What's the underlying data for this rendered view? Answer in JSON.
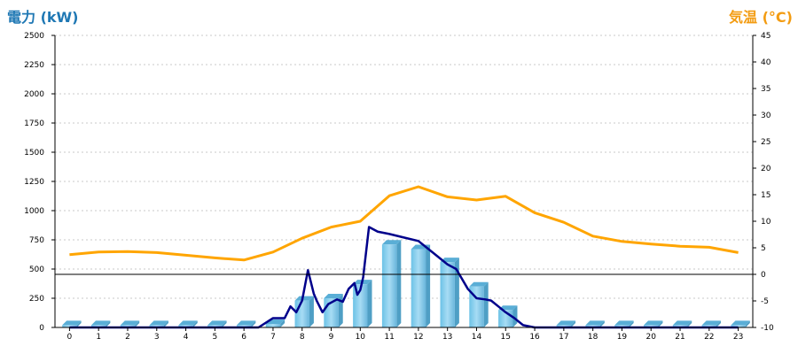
{
  "chart_data": {
    "type": "bar",
    "left_axis_title": "電力 (kW)",
    "right_axis_title": "気温 (°C)",
    "categories": [
      "0",
      "1",
      "2",
      "3",
      "4",
      "5",
      "6",
      "7",
      "8",
      "9",
      "10",
      "11",
      "12",
      "13",
      "14",
      "15",
      "16",
      "17",
      "18",
      "19",
      "20",
      "21",
      "22",
      "23"
    ],
    "left_ylim": [
      0,
      2500
    ],
    "left_yticks": [
      "0",
      "250",
      "500",
      "750",
      "1000",
      "1250",
      "1500",
      "1750",
      "2000",
      "2250",
      "2500"
    ],
    "right_ylim": [
      -10,
      45
    ],
    "right_yticks": [
      "-10",
      "-5",
      "0",
      "5",
      "10",
      "15",
      "20",
      "25",
      "30",
      "35",
      "40",
      "45"
    ],
    "grid": true,
    "colors": {
      "bars": "#87ceeb",
      "power_line": "#00008b",
      "temperature_line": "#ffa500",
      "left_title": "#1f78b4",
      "right_title": "#f39c12"
    },
    "series": [
      {
        "kind": "bar",
        "axis": "left",
        "values": [
          20,
          20,
          20,
          20,
          20,
          20,
          20,
          30,
          230,
          250,
          370,
          710,
          670,
          560,
          350,
          150,
          0,
          20,
          20,
          20,
          20,
          20,
          20,
          20
        ]
      },
      {
        "kind": "line",
        "axis": "left",
        "points": [
          [
            0,
            0
          ],
          [
            1,
            0
          ],
          [
            2,
            0
          ],
          [
            3,
            0
          ],
          [
            4,
            0
          ],
          [
            5,
            0
          ],
          [
            6,
            0
          ],
          [
            6.5,
            0
          ],
          [
            7,
            80
          ],
          [
            7.4,
            80
          ],
          [
            7.6,
            180
          ],
          [
            7.8,
            130
          ],
          [
            8,
            230
          ],
          [
            8.2,
            490
          ],
          [
            8.4,
            290
          ],
          [
            8.5,
            230
          ],
          [
            8.7,
            130
          ],
          [
            8.9,
            200
          ],
          [
            9.2,
            240
          ],
          [
            9.4,
            220
          ],
          [
            9.6,
            330
          ],
          [
            9.8,
            380
          ],
          [
            9.9,
            280
          ],
          [
            10,
            320
          ],
          [
            10.1,
            430
          ],
          [
            10.3,
            860
          ],
          [
            10.6,
            820
          ],
          [
            11,
            800
          ],
          [
            11.5,
            770
          ],
          [
            12,
            740
          ],
          [
            12.5,
            640
          ],
          [
            13,
            540
          ],
          [
            13.3,
            500
          ],
          [
            13.7,
            330
          ],
          [
            14,
            250
          ],
          [
            14.3,
            240
          ],
          [
            14.5,
            230
          ],
          [
            14.8,
            170
          ],
          [
            15,
            130
          ],
          [
            15.3,
            80
          ],
          [
            15.6,
            20
          ],
          [
            16,
            0
          ],
          [
            17,
            0
          ],
          [
            18,
            0
          ],
          [
            19,
            0
          ],
          [
            20,
            0
          ],
          [
            21,
            0
          ],
          [
            22,
            0
          ],
          [
            23,
            0
          ]
        ]
      },
      {
        "kind": "line",
        "axis": "right",
        "values": [
          3.7,
          4.2,
          4.3,
          4.1,
          3.6,
          3.1,
          2.7,
          4.2,
          6.8,
          8.9,
          10.0,
          14.8,
          16.5,
          14.6,
          14.0,
          14.7,
          11.6,
          9.8,
          7.2,
          6.2,
          5.7,
          5.3,
          5.1,
          4.1
        ]
      }
    ]
  }
}
